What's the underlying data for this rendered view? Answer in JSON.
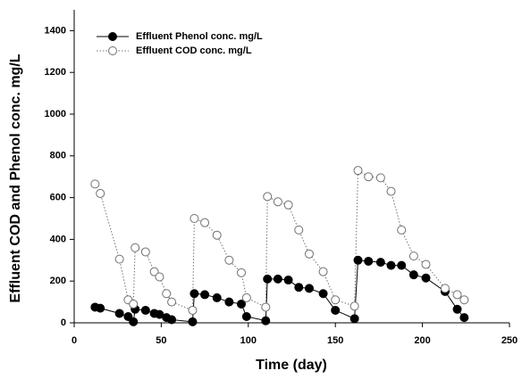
{
  "chart_data": {
    "type": "line",
    "x_label": "Time (day)",
    "y_label": "Effluent COD and Phenol conc. mg/L",
    "x": [
      12,
      15,
      26,
      31,
      34,
      35,
      41,
      46,
      49,
      53,
      56,
      68,
      69,
      75,
      82,
      89,
      96,
      99,
      110,
      111,
      117,
      123,
      129,
      135,
      143,
      150,
      161,
      163,
      169,
      176,
      182,
      188,
      195,
      202,
      213,
      220,
      224
    ],
    "series": [
      {
        "name": "Effluent Phenol conc. mg/L",
        "color": "#000000",
        "marker_fill": "#000000",
        "dash": false,
        "values": [
          75,
          70,
          45,
          30,
          5,
          65,
          60,
          45,
          40,
          25,
          15,
          5,
          140,
          135,
          120,
          100,
          90,
          30,
          10,
          210,
          210,
          205,
          170,
          165,
          140,
          60,
          20,
          300,
          295,
          290,
          275,
          275,
          230,
          215,
          150,
          65,
          25
        ]
      },
      {
        "name": "Effluent COD conc. mg/L",
        "color": "#707070",
        "marker_fill": "#ffffff",
        "dash": true,
        "values": [
          665,
          620,
          305,
          110,
          90,
          360,
          340,
          245,
          220,
          140,
          100,
          60,
          500,
          480,
          420,
          300,
          240,
          120,
          75,
          605,
          580,
          565,
          445,
          330,
          245,
          110,
          80,
          730,
          700,
          695,
          630,
          445,
          320,
          280,
          165,
          135,
          110
        ]
      }
    ],
    "xlim": [
      0,
      250
    ],
    "xticks": [
      0,
      50,
      100,
      150,
      200,
      250
    ],
    "ylim": [
      0,
      1500
    ],
    "yticks": [
      0,
      200,
      400,
      600,
      800,
      1000,
      1200,
      1400
    ],
    "legend": "top-left"
  }
}
